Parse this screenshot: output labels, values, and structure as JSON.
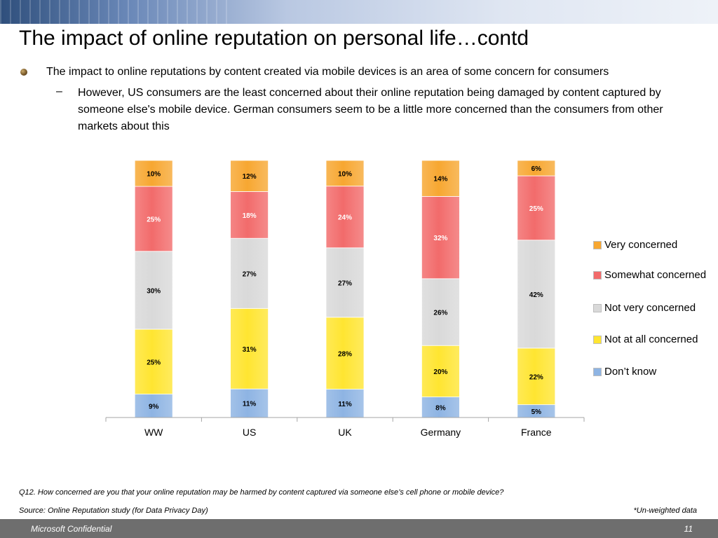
{
  "slide": {
    "title": "The impact of online reputation on personal life…contd",
    "bullet1": "The impact to online reputations by content created via mobile devices is an area of some concern for consumers",
    "dash": "–",
    "bullet2": "However, US consumers are the least concerned about their online reputation being damaged by content captured by someone else's mobile device. German consumers seem to be a little more concerned than the consumers from other markets about this",
    "question": "Q12. How concerned are you that your online reputation may be harmed by content captured via someone else’s cell phone or mobile device?",
    "source": "Source: Online Reputation study (for Data Privacy Day)",
    "unweighted": "*Un-weighted data",
    "footer_label": "Microsoft Confidential",
    "page_number": "11"
  },
  "chart_data": {
    "type": "bar",
    "stacked": true,
    "percent_stacked": true,
    "categories": [
      "WW",
      "US",
      "UK",
      "Germany",
      "France"
    ],
    "series": [
      {
        "name": "Don’t know",
        "values": [
          9,
          11,
          11,
          8,
          5
        ],
        "color": "#8eb4e3"
      },
      {
        "name": "Not at all concerned",
        "values": [
          25,
          31,
          28,
          20,
          22
        ],
        "color": "#ffe531"
      },
      {
        "name": "Not very concerned",
        "values": [
          30,
          27,
          27,
          26,
          42
        ],
        "color": "#d9d9d9"
      },
      {
        "name": "Somewhat concerned",
        "values": [
          25,
          18,
          24,
          32,
          25
        ],
        "color": "#f26b6b"
      },
      {
        "name": "Very concerned",
        "values": [
          10,
          12,
          10,
          14,
          6
        ],
        "color": "#f7a731"
      }
    ],
    "data_labels": [
      [
        "9%",
        "11%",
        "11%",
        "8%",
        "5%"
      ],
      [
        "25%",
        "31%",
        "28%",
        "20%",
        "22%"
      ],
      [
        "30%",
        "27%",
        "27%",
        "26%",
        "42%"
      ],
      [
        "25%",
        "18%",
        "24%",
        "32%",
        "25%"
      ],
      [
        "10%",
        "12%",
        "10%",
        "14%",
        "6%"
      ]
    ],
    "legend": {
      "placement": "right",
      "items": [
        "Very concerned",
        "Somewhat concerned",
        "Not very concerned",
        "Not at all concerned",
        "Don’t know"
      ]
    },
    "ylim": [
      0,
      100
    ],
    "grid": false
  }
}
